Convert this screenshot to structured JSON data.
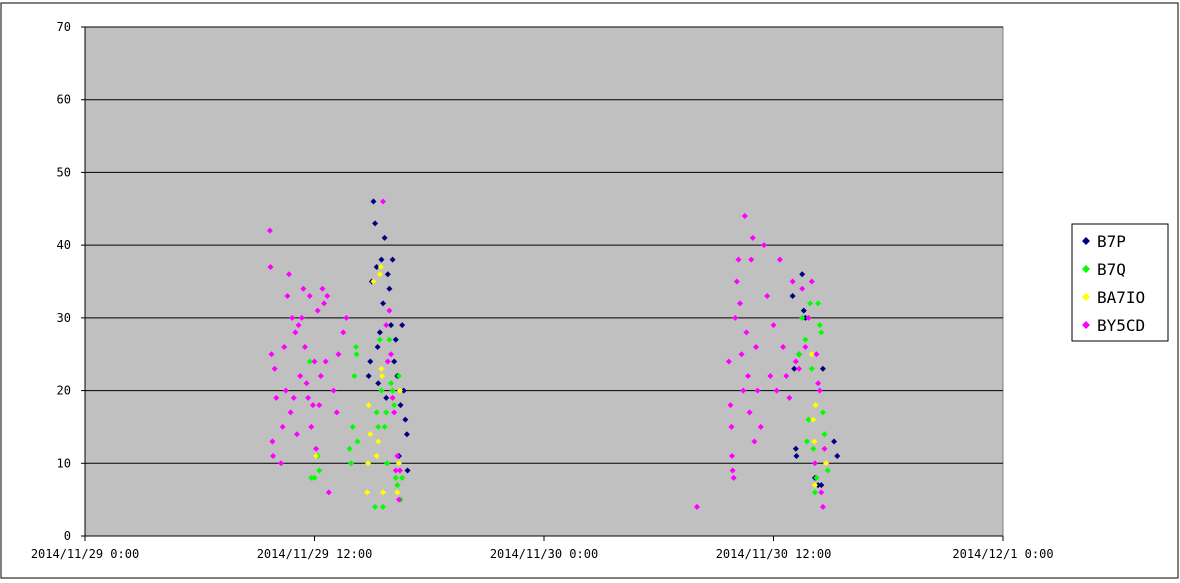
{
  "chart_data": {
    "type": "scatter",
    "title": "",
    "xlabel": "",
    "ylabel": "",
    "xlim": [
      "2014/11/29 0:00",
      "2014/12/1 0:00"
    ],
    "ylim": [
      0,
      70
    ],
    "yticks": [
      0,
      10,
      20,
      30,
      40,
      50,
      60,
      70
    ],
    "xticks": [
      "2014/11/29 0:00",
      "2014/11/29 12:00",
      "2014/11/30 0:00",
      "2014/11/30 12:00",
      "2014/12/1 0:00"
    ],
    "grid": "horizontal",
    "legend_position": "right",
    "plot_background": "#c0c0c0",
    "series": [
      {
        "name": "B7P",
        "color": "#000080",
        "marker": "diamond",
        "points": [
          [
            "2014/11/29 14:50",
            22
          ],
          [
            "2014/11/29 14:55",
            24
          ],
          [
            "2014/11/29 15:00",
            35
          ],
          [
            "2014/11/29 15:05",
            46
          ],
          [
            "2014/11/29 15:10",
            43
          ],
          [
            "2014/11/29 15:15",
            37
          ],
          [
            "2014/11/29 15:18",
            26
          ],
          [
            "2014/11/29 15:20",
            21
          ],
          [
            "2014/11/29 15:25",
            28
          ],
          [
            "2014/11/29 15:30",
            38
          ],
          [
            "2014/11/29 15:35",
            32
          ],
          [
            "2014/11/29 15:40",
            41
          ],
          [
            "2014/11/29 15:45",
            19
          ],
          [
            "2014/11/29 15:50",
            36
          ],
          [
            "2014/11/29 15:55",
            34
          ],
          [
            "2014/11/29 16:00",
            29
          ],
          [
            "2014/11/29 16:05",
            38
          ],
          [
            "2014/11/29 16:10",
            24
          ],
          [
            "2014/11/29 16:15",
            27
          ],
          [
            "2014/11/29 16:20",
            22
          ],
          [
            "2014/11/29 16:25",
            11
          ],
          [
            "2014/11/29 16:30",
            18
          ],
          [
            "2014/11/29 16:35",
            29
          ],
          [
            "2014/11/29 16:40",
            20
          ],
          [
            "2014/11/29 16:45",
            16
          ],
          [
            "2014/11/29 16:50",
            14
          ],
          [
            "2014/11/29 16:52",
            9
          ],
          [
            "2014/11/30 13:00",
            33
          ],
          [
            "2014/11/30 13:05",
            23
          ],
          [
            "2014/11/30 13:10",
            12
          ],
          [
            "2014/11/30 13:12",
            11
          ],
          [
            "2014/11/30 13:20",
            25
          ],
          [
            "2014/11/30 13:30",
            36
          ],
          [
            "2014/11/30 13:35",
            31
          ],
          [
            "2014/11/30 13:40",
            30
          ],
          [
            "2014/11/30 14:10",
            8
          ],
          [
            "2014/11/30 14:20",
            7
          ],
          [
            "2014/11/30 14:30",
            7
          ],
          [
            "2014/11/30 14:35",
            23
          ],
          [
            "2014/11/30 15:10",
            13
          ],
          [
            "2014/11/30 15:20",
            11
          ]
        ]
      },
      {
        "name": "B7Q",
        "color": "#00ff00",
        "marker": "diamond",
        "points": [
          [
            "2014/11/29 11:45",
            24
          ],
          [
            "2014/11/29 11:50",
            8
          ],
          [
            "2014/11/29 12:00",
            8
          ],
          [
            "2014/11/29 12:10",
            11
          ],
          [
            "2014/11/29 12:15",
            9
          ],
          [
            "2014/11/29 13:50",
            12
          ],
          [
            "2014/11/29 13:55",
            10
          ],
          [
            "2014/11/29 14:00",
            15
          ],
          [
            "2014/11/29 14:05",
            22
          ],
          [
            "2014/11/29 14:10",
            26
          ],
          [
            "2014/11/29 14:12",
            25
          ],
          [
            "2014/11/29 14:15",
            13
          ],
          [
            "2014/11/29 15:10",
            4
          ],
          [
            "2014/11/29 15:15",
            17
          ],
          [
            "2014/11/29 15:20",
            15
          ],
          [
            "2014/11/29 15:25",
            27
          ],
          [
            "2014/11/29 15:30",
            20
          ],
          [
            "2014/11/29 15:35",
            4
          ],
          [
            "2014/11/29 15:40",
            15
          ],
          [
            "2014/11/29 15:45",
            17
          ],
          [
            "2014/11/29 15:48",
            10
          ],
          [
            "2014/11/29 15:55",
            27
          ],
          [
            "2014/11/29 16:00",
            21
          ],
          [
            "2014/11/29 16:05",
            20
          ],
          [
            "2014/11/29 16:10",
            18
          ],
          [
            "2014/11/29 16:15",
            8
          ],
          [
            "2014/11/29 16:20",
            7
          ],
          [
            "2014/11/29 16:25",
            22
          ],
          [
            "2014/11/29 16:30",
            5
          ],
          [
            "2014/11/29 16:35",
            8
          ],
          [
            "2014/11/30 13:20",
            25
          ],
          [
            "2014/11/30 13:30",
            30
          ],
          [
            "2014/11/30 13:40",
            27
          ],
          [
            "2014/11/30 13:45",
            13
          ],
          [
            "2014/11/30 13:50",
            16
          ],
          [
            "2014/11/30 13:55",
            32
          ],
          [
            "2014/11/30 14:00",
            23
          ],
          [
            "2014/11/30 14:05",
            12
          ],
          [
            "2014/11/30 14:10",
            6
          ],
          [
            "2014/11/30 14:15",
            8
          ],
          [
            "2014/11/30 14:20",
            32
          ],
          [
            "2014/11/30 14:25",
            29
          ],
          [
            "2014/11/30 14:30",
            28
          ],
          [
            "2014/11/30 14:35",
            17
          ],
          [
            "2014/11/30 14:40",
            14
          ],
          [
            "2014/11/30 14:50",
            9
          ]
        ]
      },
      {
        "name": "BA7IO",
        "color": "#ffff00",
        "marker": "diamond",
        "points": [
          [
            "2014/11/29 12:05",
            11
          ],
          [
            "2014/11/29 14:45",
            6
          ],
          [
            "2014/11/29 14:48",
            10
          ],
          [
            "2014/11/29 14:50",
            18
          ],
          [
            "2014/11/29 14:55",
            14
          ],
          [
            "2014/11/29 15:05",
            35
          ],
          [
            "2014/11/29 15:15",
            11
          ],
          [
            "2014/11/29 15:20",
            13
          ],
          [
            "2014/11/29 15:25",
            36
          ],
          [
            "2014/11/29 15:28",
            37
          ],
          [
            "2014/11/29 15:30",
            23
          ],
          [
            "2014/11/29 15:32",
            22
          ],
          [
            "2014/11/29 15:35",
            6
          ],
          [
            "2014/11/29 16:20",
            6
          ],
          [
            "2014/11/29 16:25",
            10
          ],
          [
            "2014/11/29 16:28",
            20
          ],
          [
            "2014/11/30 14:00",
            25
          ],
          [
            "2014/11/30 14:05",
            16
          ],
          [
            "2014/11/30 14:08",
            13
          ],
          [
            "2014/11/30 14:10",
            7
          ],
          [
            "2014/11/30 14:12",
            18
          ],
          [
            "2014/11/30 14:45",
            10
          ]
        ]
      },
      {
        "name": "BY5CD",
        "color": "#ff00ff",
        "marker": "diamond",
        "points": [
          [
            "2014/11/29 9:40",
            42
          ],
          [
            "2014/11/29 9:42",
            37
          ],
          [
            "2014/11/29 9:45",
            25
          ],
          [
            "2014/11/29 9:48",
            13
          ],
          [
            "2014/11/29 9:50",
            11
          ],
          [
            "2014/11/29 9:55",
            23
          ],
          [
            "2014/11/29 10:00",
            19
          ],
          [
            "2014/11/29 10:15",
            10
          ],
          [
            "2014/11/29 10:20",
            15
          ],
          [
            "2014/11/29 10:25",
            26
          ],
          [
            "2014/11/29 10:30",
            20
          ],
          [
            "2014/11/29 10:35",
            33
          ],
          [
            "2014/11/29 10:40",
            36
          ],
          [
            "2014/11/29 10:45",
            17
          ],
          [
            "2014/11/29 10:50",
            30
          ],
          [
            "2014/11/29 10:55",
            19
          ],
          [
            "2014/11/29 11:00",
            28
          ],
          [
            "2014/11/29 11:05",
            14
          ],
          [
            "2014/11/29 11:10",
            29
          ],
          [
            "2014/11/29 11:15",
            22
          ],
          [
            "2014/11/29 11:20",
            30
          ],
          [
            "2014/11/29 11:25",
            34
          ],
          [
            "2014/11/29 11:30",
            26
          ],
          [
            "2014/11/29 11:35",
            21
          ],
          [
            "2014/11/29 11:40",
            19
          ],
          [
            "2014/11/29 11:45",
            33
          ],
          [
            "2014/11/29 11:50",
            15
          ],
          [
            "2014/11/29 11:55",
            18
          ],
          [
            "2014/11/29 12:00",
            24
          ],
          [
            "2014/11/29 12:05",
            12
          ],
          [
            "2014/11/29 12:10",
            31
          ],
          [
            "2014/11/29 12:15",
            18
          ],
          [
            "2014/11/29 12:20",
            22
          ],
          [
            "2014/11/29 12:25",
            34
          ],
          [
            "2014/11/29 12:30",
            32
          ],
          [
            "2014/11/29 12:35",
            24
          ],
          [
            "2014/11/29 12:40",
            33
          ],
          [
            "2014/11/29 12:45",
            6
          ],
          [
            "2014/11/29 13:00",
            20
          ],
          [
            "2014/11/29 13:10",
            17
          ],
          [
            "2014/11/29 13:15",
            25
          ],
          [
            "2014/11/29 13:30",
            28
          ],
          [
            "2014/11/29 13:40",
            30
          ],
          [
            "2014/11/29 15:35",
            46
          ],
          [
            "2014/11/29 15:45",
            29
          ],
          [
            "2014/11/29 15:50",
            24
          ],
          [
            "2014/11/29 15:55",
            31
          ],
          [
            "2014/11/29 16:00",
            25
          ],
          [
            "2014/11/29 16:05",
            19
          ],
          [
            "2014/11/29 16:10",
            17
          ],
          [
            "2014/11/29 16:15",
            9
          ],
          [
            "2014/11/29 16:20",
            11
          ],
          [
            "2014/11/29 16:25",
            5
          ],
          [
            "2014/11/29 16:28",
            9
          ],
          [
            "2014/11/30 8:00",
            4
          ],
          [
            "2014/11/30 9:40",
            24
          ],
          [
            "2014/11/30 9:45",
            18
          ],
          [
            "2014/11/30 9:48",
            15
          ],
          [
            "2014/11/30 9:50",
            11
          ],
          [
            "2014/11/30 9:52",
            9
          ],
          [
            "2014/11/30 9:55",
            8
          ],
          [
            "2014/11/30 10:00",
            30
          ],
          [
            "2014/11/30 10:05",
            35
          ],
          [
            "2014/11/30 10:10",
            38
          ],
          [
            "2014/11/30 10:15",
            32
          ],
          [
            "2014/11/30 10:20",
            25
          ],
          [
            "2014/11/30 10:25",
            20
          ],
          [
            "2014/11/30 10:30",
            44
          ],
          [
            "2014/11/30 10:35",
            28
          ],
          [
            "2014/11/30 10:40",
            22
          ],
          [
            "2014/11/30 10:45",
            17
          ],
          [
            "2014/11/30 10:50",
            38
          ],
          [
            "2014/11/30 10:55",
            41
          ],
          [
            "2014/11/30 11:00",
            13
          ],
          [
            "2014/11/30 11:05",
            26
          ],
          [
            "2014/11/30 11:10",
            20
          ],
          [
            "2014/11/30 11:20",
            15
          ],
          [
            "2014/11/30 11:30",
            40
          ],
          [
            "2014/11/30 11:40",
            33
          ],
          [
            "2014/11/30 11:50",
            22
          ],
          [
            "2014/11/30 12:00",
            29
          ],
          [
            "2014/11/30 12:10",
            20
          ],
          [
            "2014/11/30 12:20",
            38
          ],
          [
            "2014/11/30 12:30",
            26
          ],
          [
            "2014/11/30 12:40",
            22
          ],
          [
            "2014/11/30 12:50",
            19
          ],
          [
            "2014/11/30 13:00",
            35
          ],
          [
            "2014/11/30 13:10",
            24
          ],
          [
            "2014/11/30 13:20",
            23
          ],
          [
            "2014/11/30 13:30",
            34
          ],
          [
            "2014/11/30 13:40",
            26
          ],
          [
            "2014/11/30 13:50",
            30
          ],
          [
            "2014/11/30 14:00",
            35
          ],
          [
            "2014/11/30 14:10",
            10
          ],
          [
            "2014/11/30 14:15",
            25
          ],
          [
            "2014/11/30 14:20",
            21
          ],
          [
            "2014/11/30 14:25",
            20
          ],
          [
            "2014/11/30 14:30",
            6
          ],
          [
            "2014/11/30 14:35",
            4
          ],
          [
            "2014/11/30 14:40",
            12
          ]
        ]
      }
    ]
  }
}
